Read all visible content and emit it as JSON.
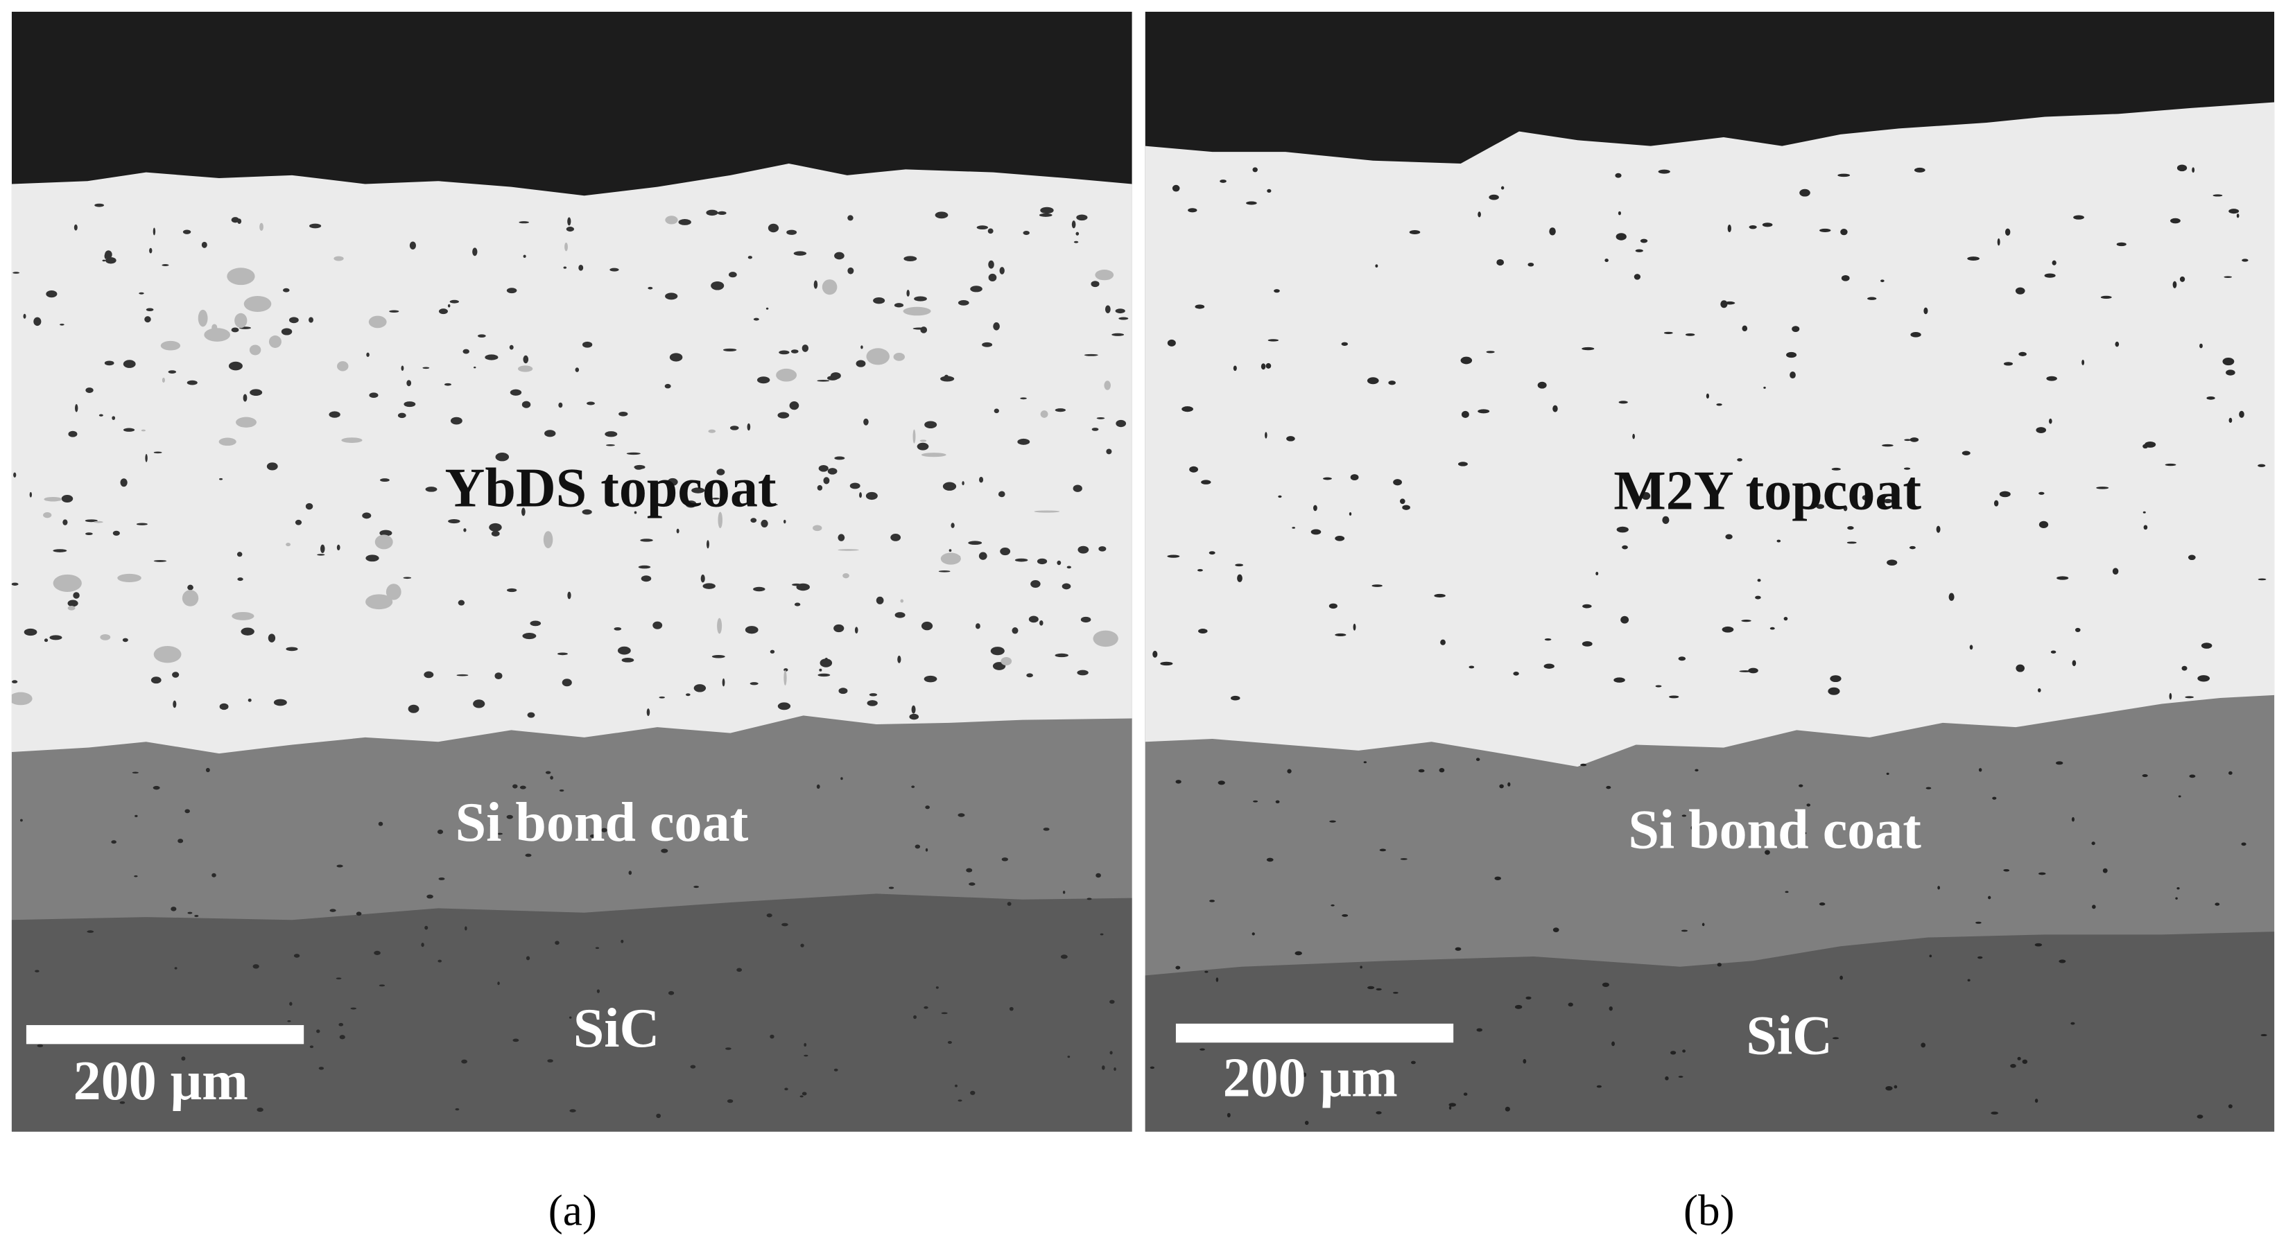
{
  "panels": [
    {
      "topcoat_label": "YbDS topcoat",
      "bond_coat_label": "Si bond coat",
      "substrate_label": "SiC",
      "scale_bar_label": "200 μm",
      "caption": "(a)"
    },
    {
      "topcoat_label": "M2Y topcoat",
      "bond_coat_label": "Si bond coat",
      "substrate_label": "SiC",
      "scale_bar_label": "200 μm",
      "caption": "(b)"
    }
  ]
}
